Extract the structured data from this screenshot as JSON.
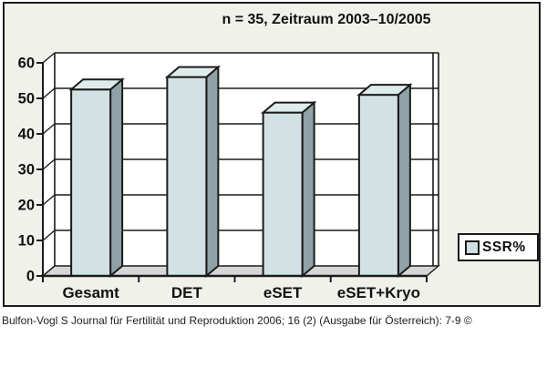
{
  "title": "n = 35, Zeitraum 2003–10/2005",
  "chart_data": {
    "type": "bar",
    "style": "3d-column",
    "title": "n = 35, Zeitraum 2003–10/2005",
    "categories": [
      "Gesamt",
      "DET",
      "eSET",
      "eSET+Kryo"
    ],
    "series": [
      {
        "name": "SSR%",
        "values": [
          52.5,
          56,
          46,
          51
        ]
      }
    ],
    "ylim": [
      0,
      60
    ],
    "ytick_step": 10,
    "xlabel": "",
    "ylabel": "",
    "grid": true,
    "legend_position": "right"
  },
  "legend": {
    "label": "SSR%",
    "swatch_color": "#cfe0e2"
  },
  "citation": "Bulfon-Vogl S Journal für Fertilität und Reproduktion 2006; 16 (2) (Ausgabe für Österreich): 7-9 ©",
  "colors": {
    "bar_front": "#d2e2e4",
    "bar_top": "#dfecec",
    "bar_side": "#8fa2a6",
    "floor": "#d6d6d6",
    "wall": "#ffffff",
    "frame_bg": "#f1f1ec",
    "line": "#1b1b1b"
  }
}
